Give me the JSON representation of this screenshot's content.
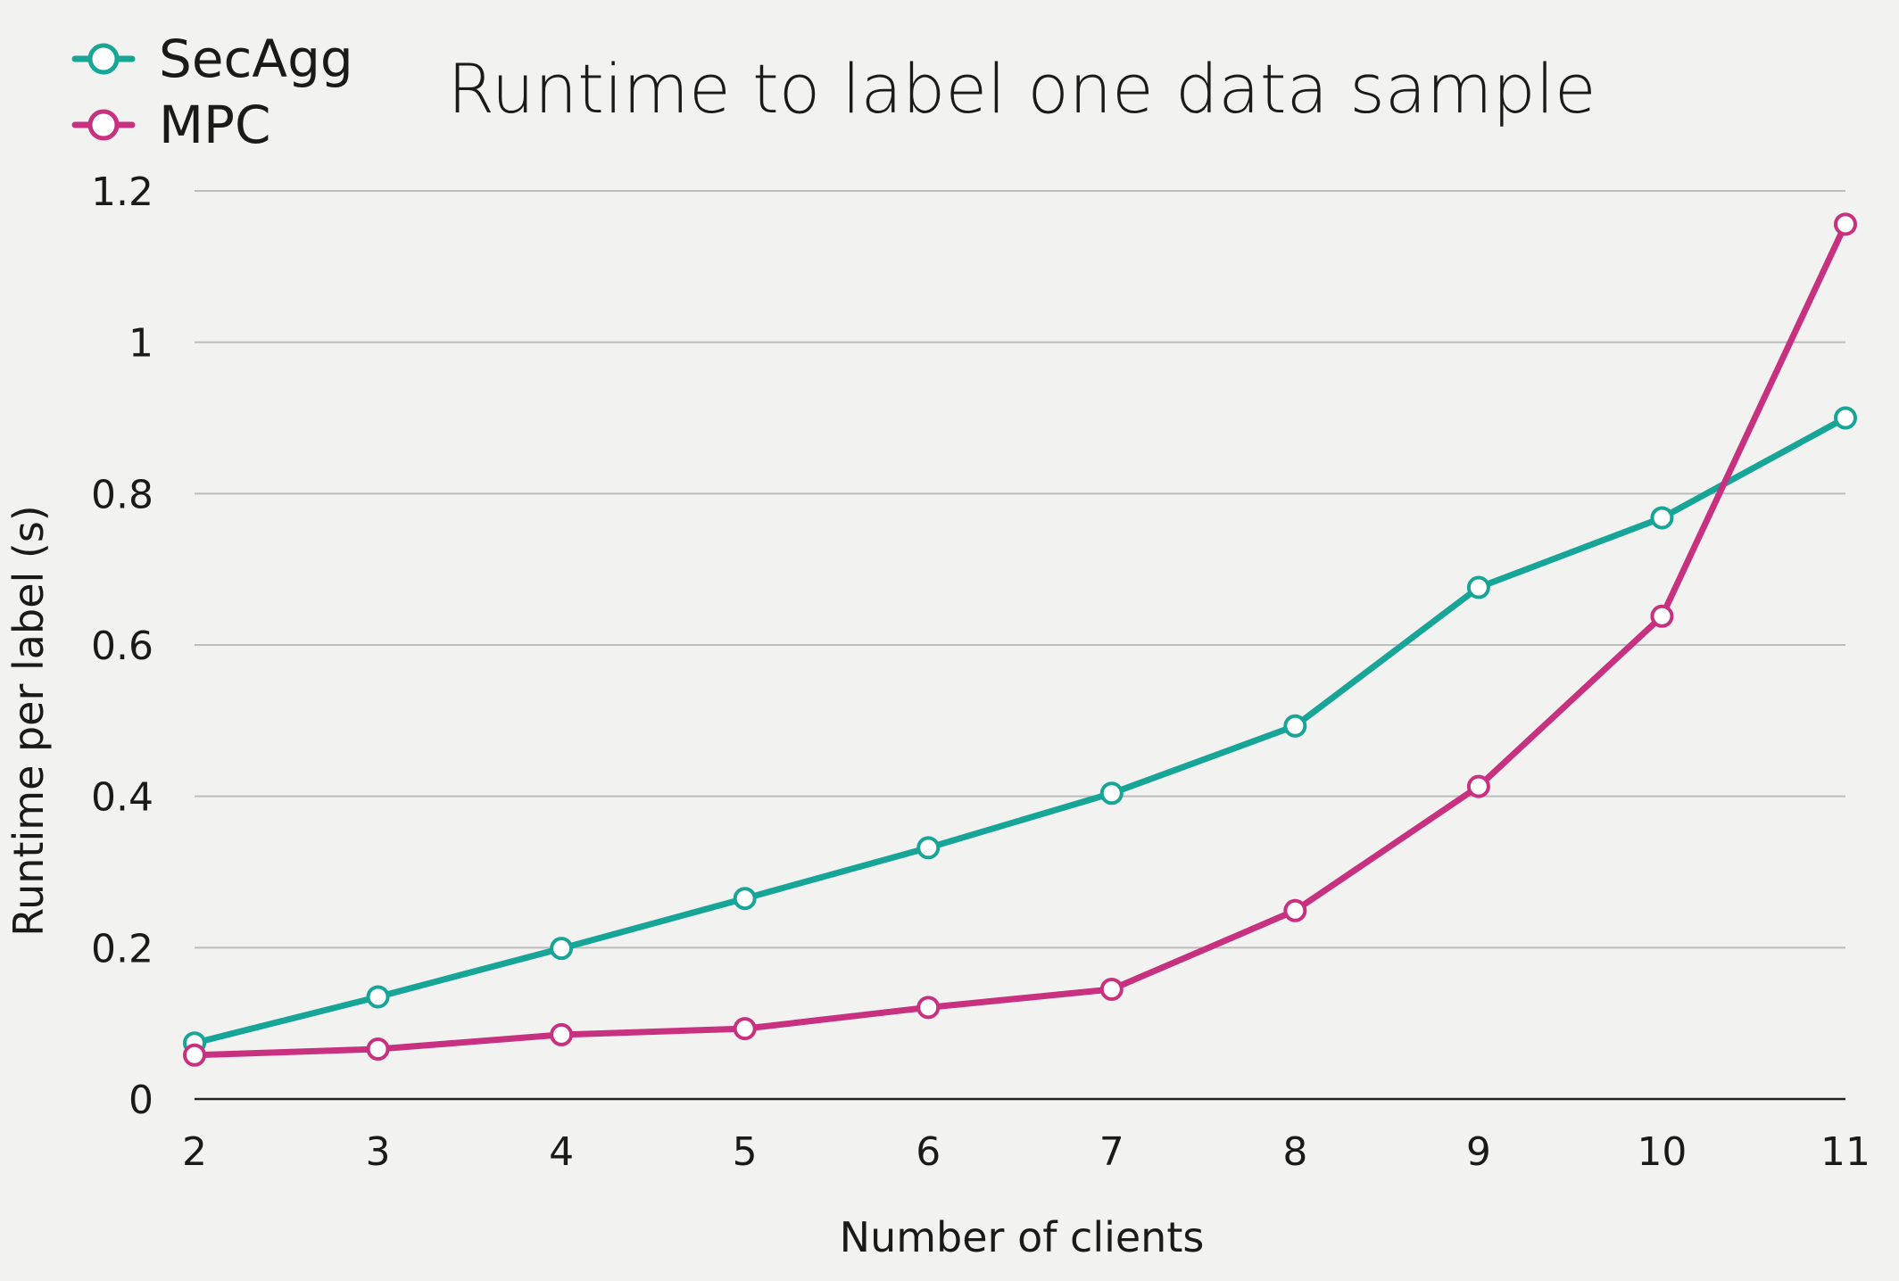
{
  "chart_data": {
    "type": "line",
    "title": "Runtime to label one data sample",
    "xlabel": "Number of clients",
    "ylabel": "Runtime per label (s)",
    "categories": [
      "2",
      "3",
      "4",
      "5",
      "6",
      "7",
      "8",
      "9",
      "10",
      "11"
    ],
    "x": [
      2,
      3,
      4,
      5,
      6,
      7,
      8,
      9,
      10,
      11
    ],
    "ylim": [
      0,
      1.2
    ],
    "yticks": [
      0,
      0.2,
      0.4,
      0.6,
      0.8,
      1,
      1.2
    ],
    "ytick_labels": [
      "0",
      "0.2",
      "0.4",
      "0.6",
      "0.8",
      "1",
      "1.2"
    ],
    "grid": true,
    "legend_position": "top-left",
    "series": [
      {
        "name": "SecAgg",
        "color": "#17a597",
        "values": [
          0.074,
          0.135,
          0.199,
          0.265,
          0.332,
          0.404,
          0.493,
          0.676,
          0.768,
          0.9
        ]
      },
      {
        "name": "MPC",
        "color": "#c8317f",
        "values": [
          0.058,
          0.066,
          0.085,
          0.093,
          0.121,
          0.145,
          0.249,
          0.413,
          0.638,
          1.156
        ]
      }
    ]
  }
}
